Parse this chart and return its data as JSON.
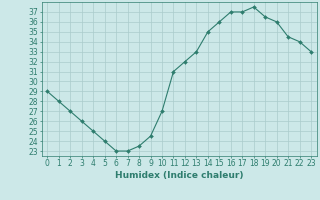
{
  "xlabel": "Humidex (Indice chaleur)",
  "x": [
    0,
    1,
    2,
    3,
    4,
    5,
    6,
    7,
    8,
    9,
    10,
    11,
    12,
    13,
    14,
    15,
    16,
    17,
    18,
    19,
    20,
    21,
    22,
    23
  ],
  "y": [
    29,
    28,
    27,
    26,
    25,
    24,
    23,
    23,
    23.5,
    24.5,
    27,
    31,
    32,
    33,
    35,
    36,
    37,
    37,
    37.5,
    36.5,
    36,
    34.5,
    34,
    33
  ],
  "line_color": "#2e7d6e",
  "marker": "D",
  "marker_size": 2.0,
  "bg_color": "#cce8e8",
  "grid_color": "#aacccc",
  "xlim": [
    -0.5,
    23.5
  ],
  "ylim": [
    22.5,
    38
  ],
  "yticks": [
    23,
    24,
    25,
    26,
    27,
    28,
    29,
    30,
    31,
    32,
    33,
    34,
    35,
    36,
    37
  ],
  "xtick_labels": [
    "0",
    "1",
    "2",
    "3",
    "4",
    "5",
    "6",
    "7",
    "8",
    "9",
    "10",
    "11",
    "12",
    "13",
    "14",
    "15",
    "16",
    "17",
    "18",
    "19",
    "20",
    "21",
    "22",
    "23"
  ],
  "tick_color": "#2e7d6e",
  "label_fontsize": 5.5,
  "axis_fontsize": 6.5
}
